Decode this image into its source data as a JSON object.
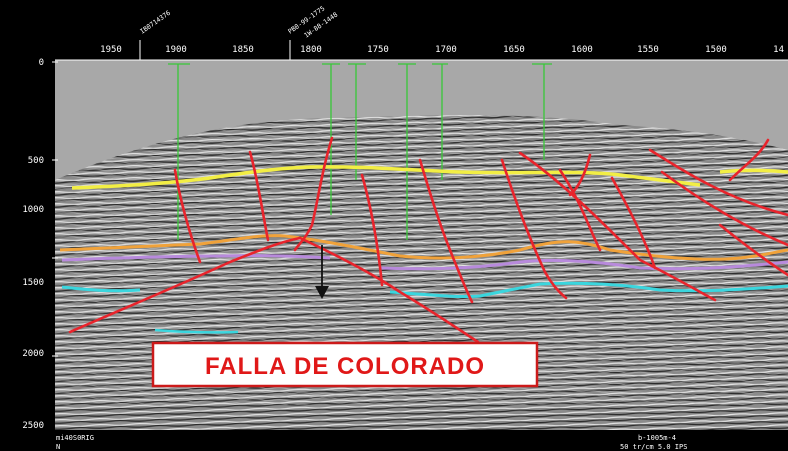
{
  "section": {
    "title": "FALLA DE COLORADO",
    "x_ticks": [
      "1950",
      "1900",
      "1850",
      "1800",
      "1750",
      "1700",
      "1650",
      "1600",
      "1550",
      "1500",
      "14"
    ],
    "y_ticks": [
      "0",
      "500",
      "1000",
      "1500",
      "2000",
      "2500"
    ],
    "wells": [
      "IB0714376",
      "PB0-99-1775",
      "1W-88-1448"
    ],
    "footer_left": [
      "mi40S0RIG",
      "N"
    ],
    "footer_right": [
      "b-1005m-4",
      "50 tr/cm 5.0 IPS"
    ]
  },
  "colors": {
    "background": "#000000",
    "seismic_gray": "#9c9c9c",
    "fault_red": "#e8242c",
    "horizon_yellow": "#f2ee44",
    "horizon_orange": "#f0a23a",
    "horizon_violet": "#b88adc",
    "horizon_cyan": "#3ad6de",
    "well_green": "#38c838",
    "title_border": "#cc1a1a"
  },
  "icons": [
    "down-arrow-icon"
  ]
}
